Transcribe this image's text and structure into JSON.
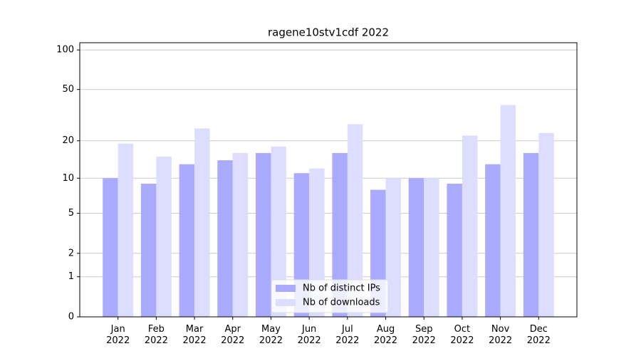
{
  "chart_data": {
    "type": "bar",
    "title": "ragene10stv1cdf 2022",
    "categories": [
      "Jan 2022",
      "Feb 2022",
      "Mar 2022",
      "Apr 2022",
      "May 2022",
      "Jun 2022",
      "Jul 2022",
      "Aug 2022",
      "Sep 2022",
      "Oct 2022",
      "Nov 2022",
      "Dec 2022"
    ],
    "series": [
      {
        "name": "Nb of distinct IPs",
        "color": "#aaaaff",
        "values": [
          10,
          9,
          13,
          14,
          16,
          11,
          16,
          8,
          10,
          9,
          13,
          16
        ]
      },
      {
        "name": "Nb of downloads",
        "color": "#ddddff",
        "values": [
          19,
          15,
          25,
          16,
          18,
          12,
          27,
          10,
          10,
          22,
          38,
          23
        ]
      }
    ],
    "yscale": "log1p",
    "ylim": [
      0,
      113.5
    ],
    "yticks": [
      0,
      1,
      2,
      5,
      10,
      20,
      50,
      100
    ],
    "grid": true,
    "legend": "lower center"
  }
}
